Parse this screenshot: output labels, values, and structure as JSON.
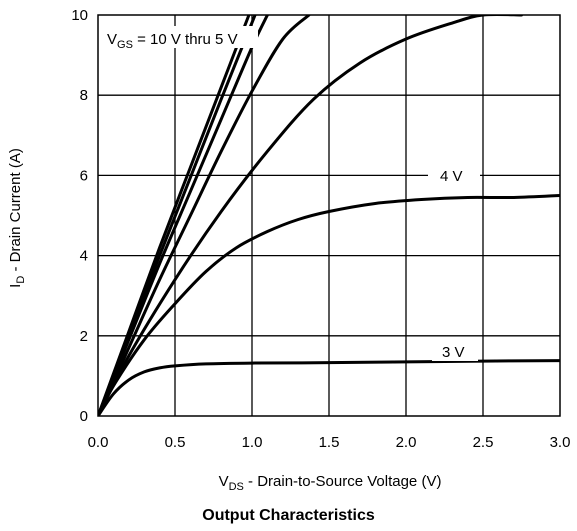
{
  "caption": "Output Characteristics",
  "chart_data": {
    "type": "line",
    "xlim": [
      0,
      3
    ],
    "ylim": [
      0,
      10
    ],
    "x_ticks": [
      "0.0",
      "0.5",
      "1.0",
      "1.5",
      "2.0",
      "2.5",
      "3.0"
    ],
    "y_ticks": [
      "0",
      "2",
      "4",
      "6",
      "8",
      "10"
    ],
    "grid": true,
    "xlabel": {
      "main": "V",
      "sub": "DS",
      "rest": " - Drain-to-Source Voltage (V)"
    },
    "ylabel": {
      "main": "I",
      "sub": "D",
      "rest": " - Drain Current (A)"
    },
    "annotations": [
      {
        "main": "V",
        "sub": "GS",
        "rest": " = 10 V thru 5 V"
      },
      {
        "main": "4 V",
        "sub": "",
        "rest": ""
      },
      {
        "main": "3 V",
        "sub": "",
        "rest": ""
      }
    ],
    "series": [
      {
        "x": [
          0,
          0.2,
          0.4,
          0.6,
          0.8,
          0.98
        ],
        "y": [
          0,
          2.1,
          4.2,
          6.2,
          8.2,
          10
        ]
      },
      {
        "x": [
          0,
          0.2,
          0.4,
          0.6,
          0.8,
          1.02
        ],
        "y": [
          0,
          2.0,
          4.0,
          5.95,
          7.9,
          10
        ]
      },
      {
        "x": [
          0,
          0.2,
          0.4,
          0.6,
          0.8,
          1.0,
          1.1
        ],
        "y": [
          0,
          1.9,
          3.8,
          5.6,
          7.4,
          9.2,
          10
        ]
      },
      {
        "x": [
          0,
          0.2,
          0.4,
          0.6,
          0.8,
          1.0,
          1.2,
          1.37
        ],
        "y": [
          0,
          1.7,
          3.4,
          5.0,
          6.6,
          8.1,
          9.4,
          10
        ]
      },
      {
        "x": [
          0,
          0.2,
          0.5,
          0.8,
          1.1,
          1.4,
          1.7,
          2.0,
          2.3,
          2.5,
          2.75
        ],
        "y": [
          0,
          1.5,
          3.4,
          5.1,
          6.6,
          7.9,
          8.8,
          9.4,
          9.8,
          10.0,
          10.0
        ]
      },
      {
        "x": [
          0,
          0.1,
          0.3,
          0.5,
          0.7,
          0.9,
          1.1,
          1.3,
          1.5,
          1.8,
          2.1,
          2.4,
          2.7,
          3.0
        ],
        "y": [
          0,
          0.75,
          1.9,
          2.8,
          3.6,
          4.2,
          4.6,
          4.9,
          5.1,
          5.3,
          5.4,
          5.45,
          5.45,
          5.5
        ]
      },
      {
        "x": [
          0,
          0.1,
          0.2,
          0.3,
          0.4,
          0.5,
          0.7,
          1.0,
          1.5,
          2.0,
          2.5,
          3.0
        ],
        "y": [
          0,
          0.55,
          0.9,
          1.1,
          1.2,
          1.25,
          1.3,
          1.32,
          1.33,
          1.35,
          1.37,
          1.38
        ]
      }
    ]
  }
}
